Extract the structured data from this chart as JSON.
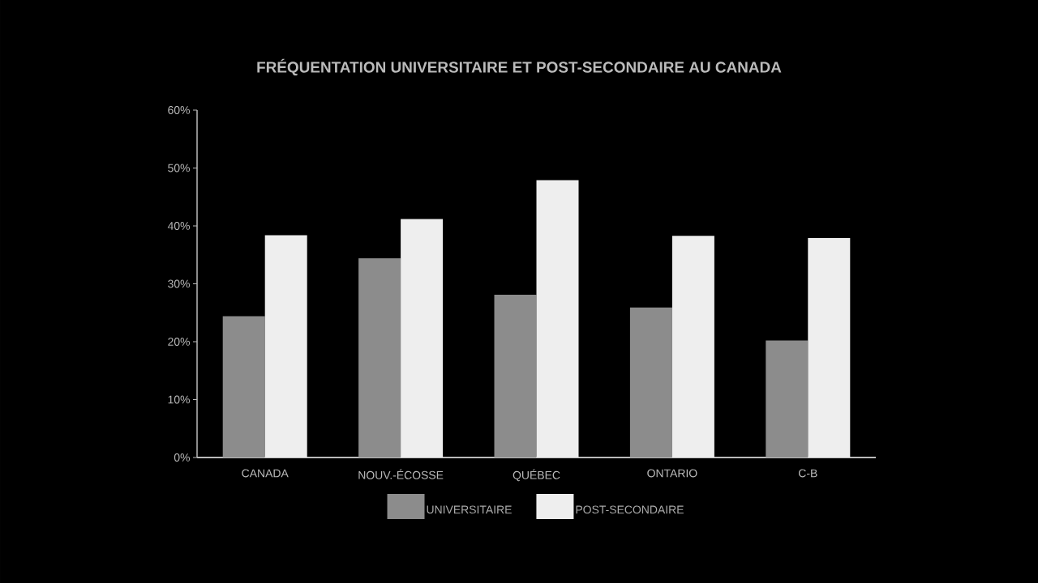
{
  "chart_data": {
    "type": "bar",
    "title": "FRÉQUENTATION UNIVERSITAIRE ET POST-SECONDAIRE AU CANADA",
    "categories": [
      "CANADA",
      "NOUV.-ÉCOSSE",
      "QUÉBEC",
      "ONTARIO",
      "C-B"
    ],
    "series": [
      {
        "name": "UNIVERSITAIRE",
        "color": "#8c8c8c",
        "values": [
          24.4,
          34.4,
          28.1,
          25.9,
          20.2
        ]
      },
      {
        "name": "POST-SECONDAIRE",
        "color": "#eeeeee",
        "values": [
          38.4,
          41.2,
          47.9,
          38.3,
          37.9
        ]
      }
    ],
    "ylim": [
      0,
      60
    ],
    "yticks": [
      {
        "value": 0,
        "label": "0%"
      },
      {
        "value": 10,
        "label": "10%"
      },
      {
        "value": 20,
        "label": "20%"
      },
      {
        "value": 30,
        "label": "30%"
      },
      {
        "value": 40,
        "label": "40%"
      },
      {
        "value": 50,
        "label": "50%"
      },
      {
        "value": 60,
        "label": "60%"
      }
    ],
    "legend": "bottom"
  }
}
